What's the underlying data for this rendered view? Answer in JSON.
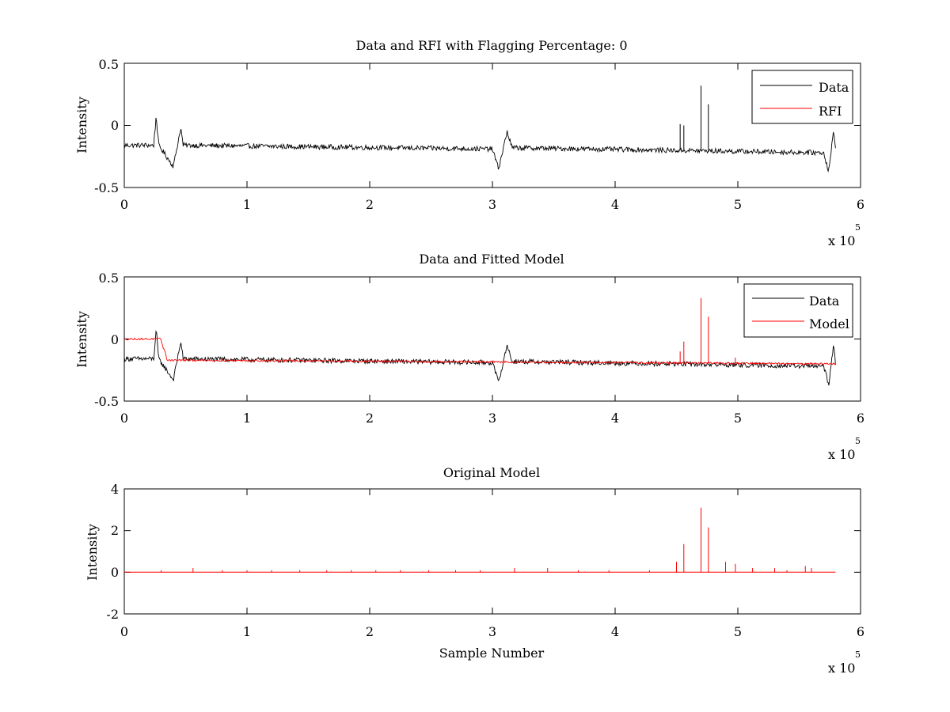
{
  "chart_data": [
    {
      "type": "line",
      "title": "Data and RFI with Flagging Percentage: 0",
      "xlabel": "",
      "ylabel": "Intensity",
      "xlim": [
        0,
        600000
      ],
      "ylim": [
        -0.5,
        0.5
      ],
      "x_ticks": [
        0,
        1,
        2,
        3,
        4,
        5,
        6
      ],
      "x_tick_labels": [
        "0",
        "1",
        "2",
        "3",
        "4",
        "5",
        "6"
      ],
      "y_ticks": [
        -0.5,
        0,
        0.5
      ],
      "y_tick_labels": [
        "-0.5",
        "0",
        "0.5"
      ],
      "x_multiplier": "x 10",
      "x_multiplier_exp": "5",
      "grid": false,
      "legend": "top-right",
      "series": [
        {
          "name": "Data",
          "color": "#000000",
          "points": [
            [
              0,
              -0.16
            ],
            [
              24000,
              -0.16
            ],
            [
              26000,
              0.08
            ],
            [
              28000,
              -0.16
            ],
            [
              40000,
              -0.33
            ],
            [
              46000,
              -0.02
            ],
            [
              48000,
              -0.16
            ],
            [
              300000,
              -0.19
            ],
            [
              305000,
              -0.35
            ],
            [
              312000,
              -0.05
            ],
            [
              316000,
              -0.18
            ],
            [
              570000,
              -0.22
            ],
            [
              574000,
              -0.37
            ],
            [
              578000,
              -0.05
            ],
            [
              580000,
              -0.23
            ]
          ],
          "noise": 0.04,
          "spikes": [
            [
              453000,
              0.01
            ],
            [
              456000,
              0.0
            ],
            [
              470000,
              0.32
            ],
            [
              476000,
              0.17
            ]
          ]
        },
        {
          "name": "RFI",
          "color": "#ff0000",
          "points": []
        }
      ]
    },
    {
      "type": "line",
      "title": "Data and Fitted Model",
      "xlabel": "",
      "ylabel": "Intensity",
      "xlim": [
        0,
        600000
      ],
      "ylim": [
        -0.5,
        0.5
      ],
      "x_ticks": [
        0,
        1,
        2,
        3,
        4,
        5,
        6
      ],
      "x_tick_labels": [
        "0",
        "1",
        "2",
        "3",
        "4",
        "5",
        "6"
      ],
      "y_ticks": [
        -0.5,
        0,
        0.5
      ],
      "y_tick_labels": [
        "-0.5",
        "0",
        "0.5"
      ],
      "x_multiplier": "x 10",
      "x_multiplier_exp": "5",
      "grid": false,
      "legend": "top-right",
      "series": [
        {
          "name": "Data",
          "color": "#000000",
          "points": [
            [
              0,
              -0.16
            ],
            [
              24000,
              -0.16
            ],
            [
              26000,
              0.08
            ],
            [
              28000,
              -0.16
            ],
            [
              40000,
              -0.33
            ],
            [
              46000,
              -0.02
            ],
            [
              48000,
              -0.16
            ],
            [
              300000,
              -0.19
            ],
            [
              305000,
              -0.35
            ],
            [
              312000,
              -0.05
            ],
            [
              316000,
              -0.18
            ],
            [
              570000,
              -0.22
            ],
            [
              574000,
              -0.37
            ],
            [
              578000,
              -0.05
            ],
            [
              580000,
              -0.23
            ]
          ],
          "noise": 0.04,
          "spikes": []
        },
        {
          "name": "Model",
          "color": "#ff0000",
          "points": [
            [
              0,
              0.0
            ],
            [
              30000,
              0.0
            ],
            [
              31000,
              -0.05
            ],
            [
              33000,
              -0.1
            ],
            [
              35000,
              -0.17
            ],
            [
              580000,
              -0.2
            ]
          ],
          "noise": 0.015,
          "spikes": [
            [
              453000,
              -0.1
            ],
            [
              456000,
              -0.02
            ],
            [
              470000,
              0.33
            ],
            [
              476000,
              0.18
            ],
            [
              498000,
              -0.15
            ]
          ]
        }
      ]
    },
    {
      "type": "line",
      "title": "Original Model",
      "xlabel": "Sample Number",
      "ylabel": "Intensity",
      "xlim": [
        0,
        600000
      ],
      "ylim": [
        -2,
        4
      ],
      "x_ticks": [
        0,
        1,
        2,
        3,
        4,
        5,
        6
      ],
      "x_tick_labels": [
        "0",
        "1",
        "2",
        "3",
        "4",
        "5",
        "6"
      ],
      "y_ticks": [
        -2,
        0,
        2,
        4
      ],
      "y_tick_labels": [
        "-2",
        "0",
        "2",
        "4"
      ],
      "x_multiplier": "x 10",
      "x_multiplier_exp": "5",
      "grid": false,
      "legend": "none",
      "series": [
        {
          "name": "",
          "color": "#ff0000",
          "points": [
            [
              0,
              0.0
            ],
            [
              580000,
              0.0
            ]
          ],
          "noise": 0.0,
          "spikes": [
            [
              30000,
              0.1
            ],
            [
              56000,
              0.2
            ],
            [
              80000,
              0.1
            ],
            [
              100000,
              0.1
            ],
            [
              120000,
              0.1
            ],
            [
              143000,
              0.1
            ],
            [
              165000,
              0.1
            ],
            [
              185000,
              0.1
            ],
            [
              205000,
              0.1
            ],
            [
              225000,
              0.1
            ],
            [
              248000,
              0.1
            ],
            [
              270000,
              0.1
            ],
            [
              290000,
              0.1
            ],
            [
              318000,
              0.2
            ],
            [
              345000,
              0.2
            ],
            [
              370000,
              0.1
            ],
            [
              395000,
              0.1
            ],
            [
              428000,
              0.1
            ],
            [
              450000,
              0.5
            ],
            [
              456000,
              1.35
            ],
            [
              470000,
              3.1
            ],
            [
              476000,
              2.15
            ],
            [
              490000,
              0.5
            ],
            [
              498000,
              0.4
            ],
            [
              512000,
              0.2
            ],
            [
              530000,
              0.2
            ],
            [
              540000,
              0.1
            ],
            [
              555000,
              0.3
            ],
            [
              560000,
              0.2
            ]
          ]
        }
      ]
    }
  ]
}
